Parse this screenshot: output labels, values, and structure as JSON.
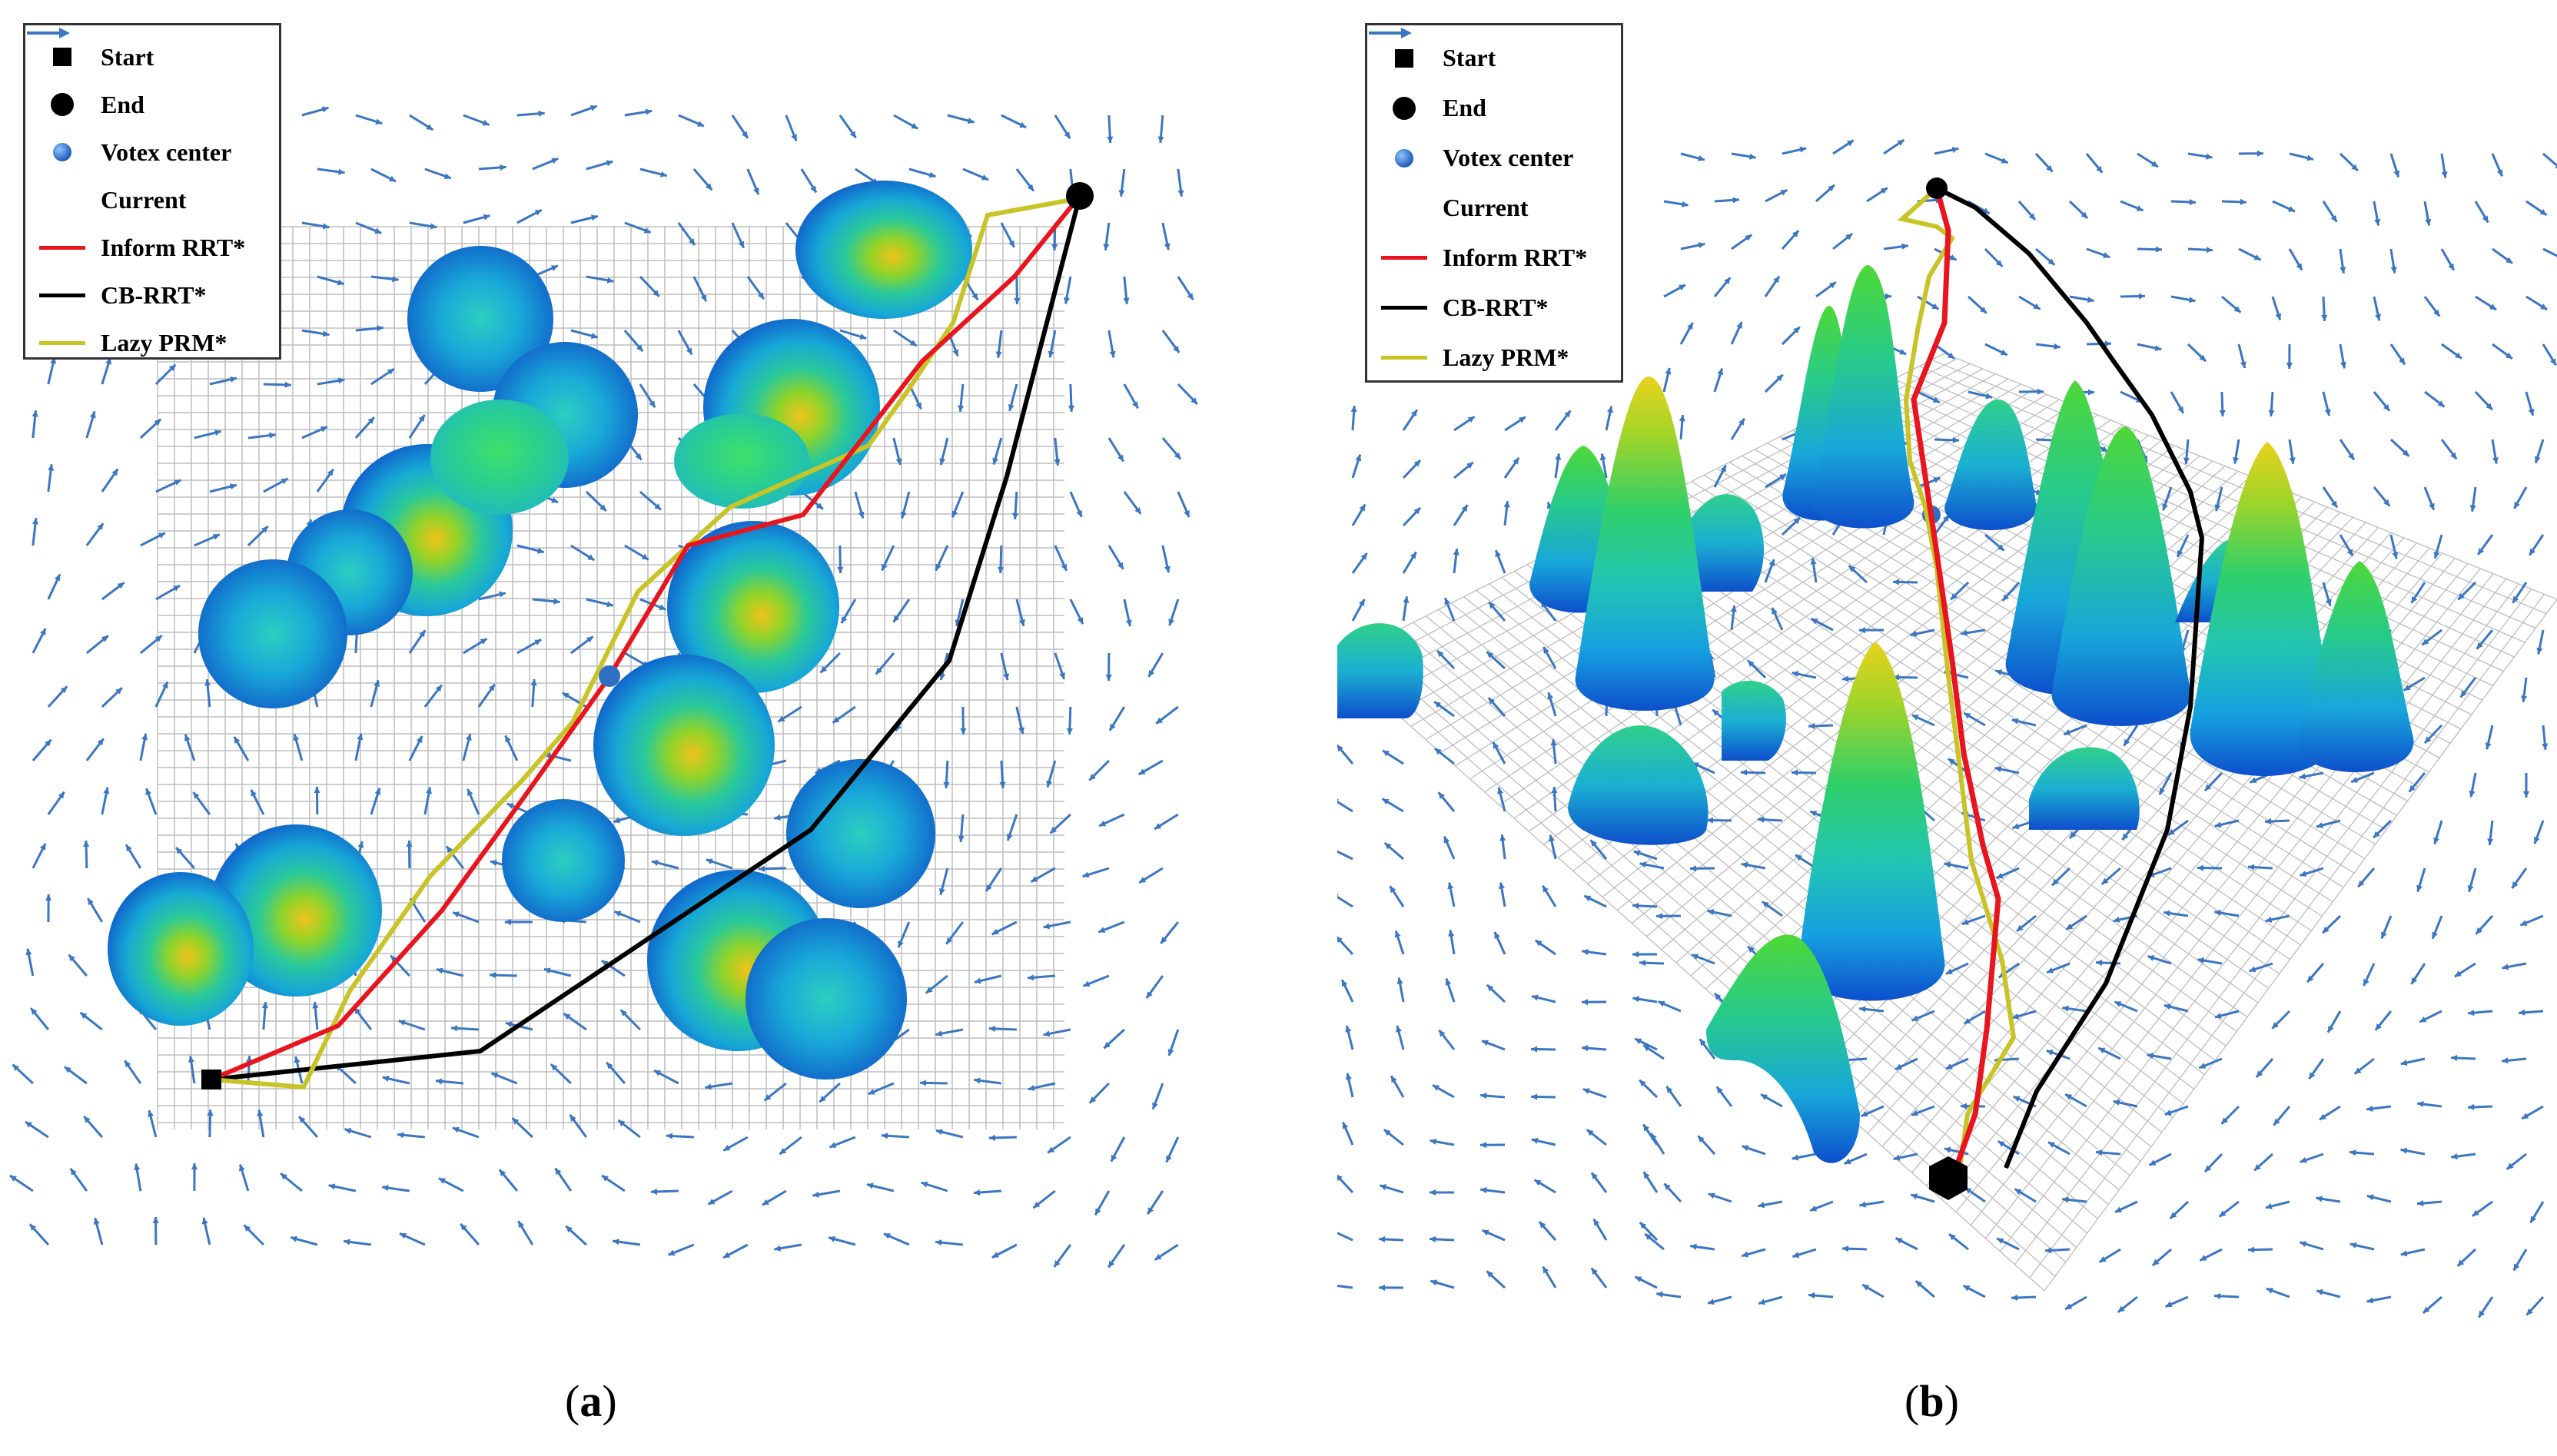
{
  "legend_a": {
    "start": "Start",
    "end": "End",
    "vortex": "Votex center",
    "current": "Current",
    "rrt": "Inform RRT*",
    "cbrrt": "CB-RRT*",
    "prm": "Lazy PRM*"
  },
  "legend_b": {
    "start": "Start",
    "end": "End",
    "vortex": "Votex center",
    "current": "Current",
    "rrt": "Inform RRT*",
    "cbrrt": "CB-RRT*",
    "prm": "Lazy PRM*"
  },
  "captions": {
    "a": "a",
    "b": "b"
  },
  "colors": {
    "current": "#3b76c2",
    "rrt": "#e8141e",
    "cbrrt": "#000000",
    "prm": "#c8c427",
    "grid": "#bdbdbd"
  }
}
